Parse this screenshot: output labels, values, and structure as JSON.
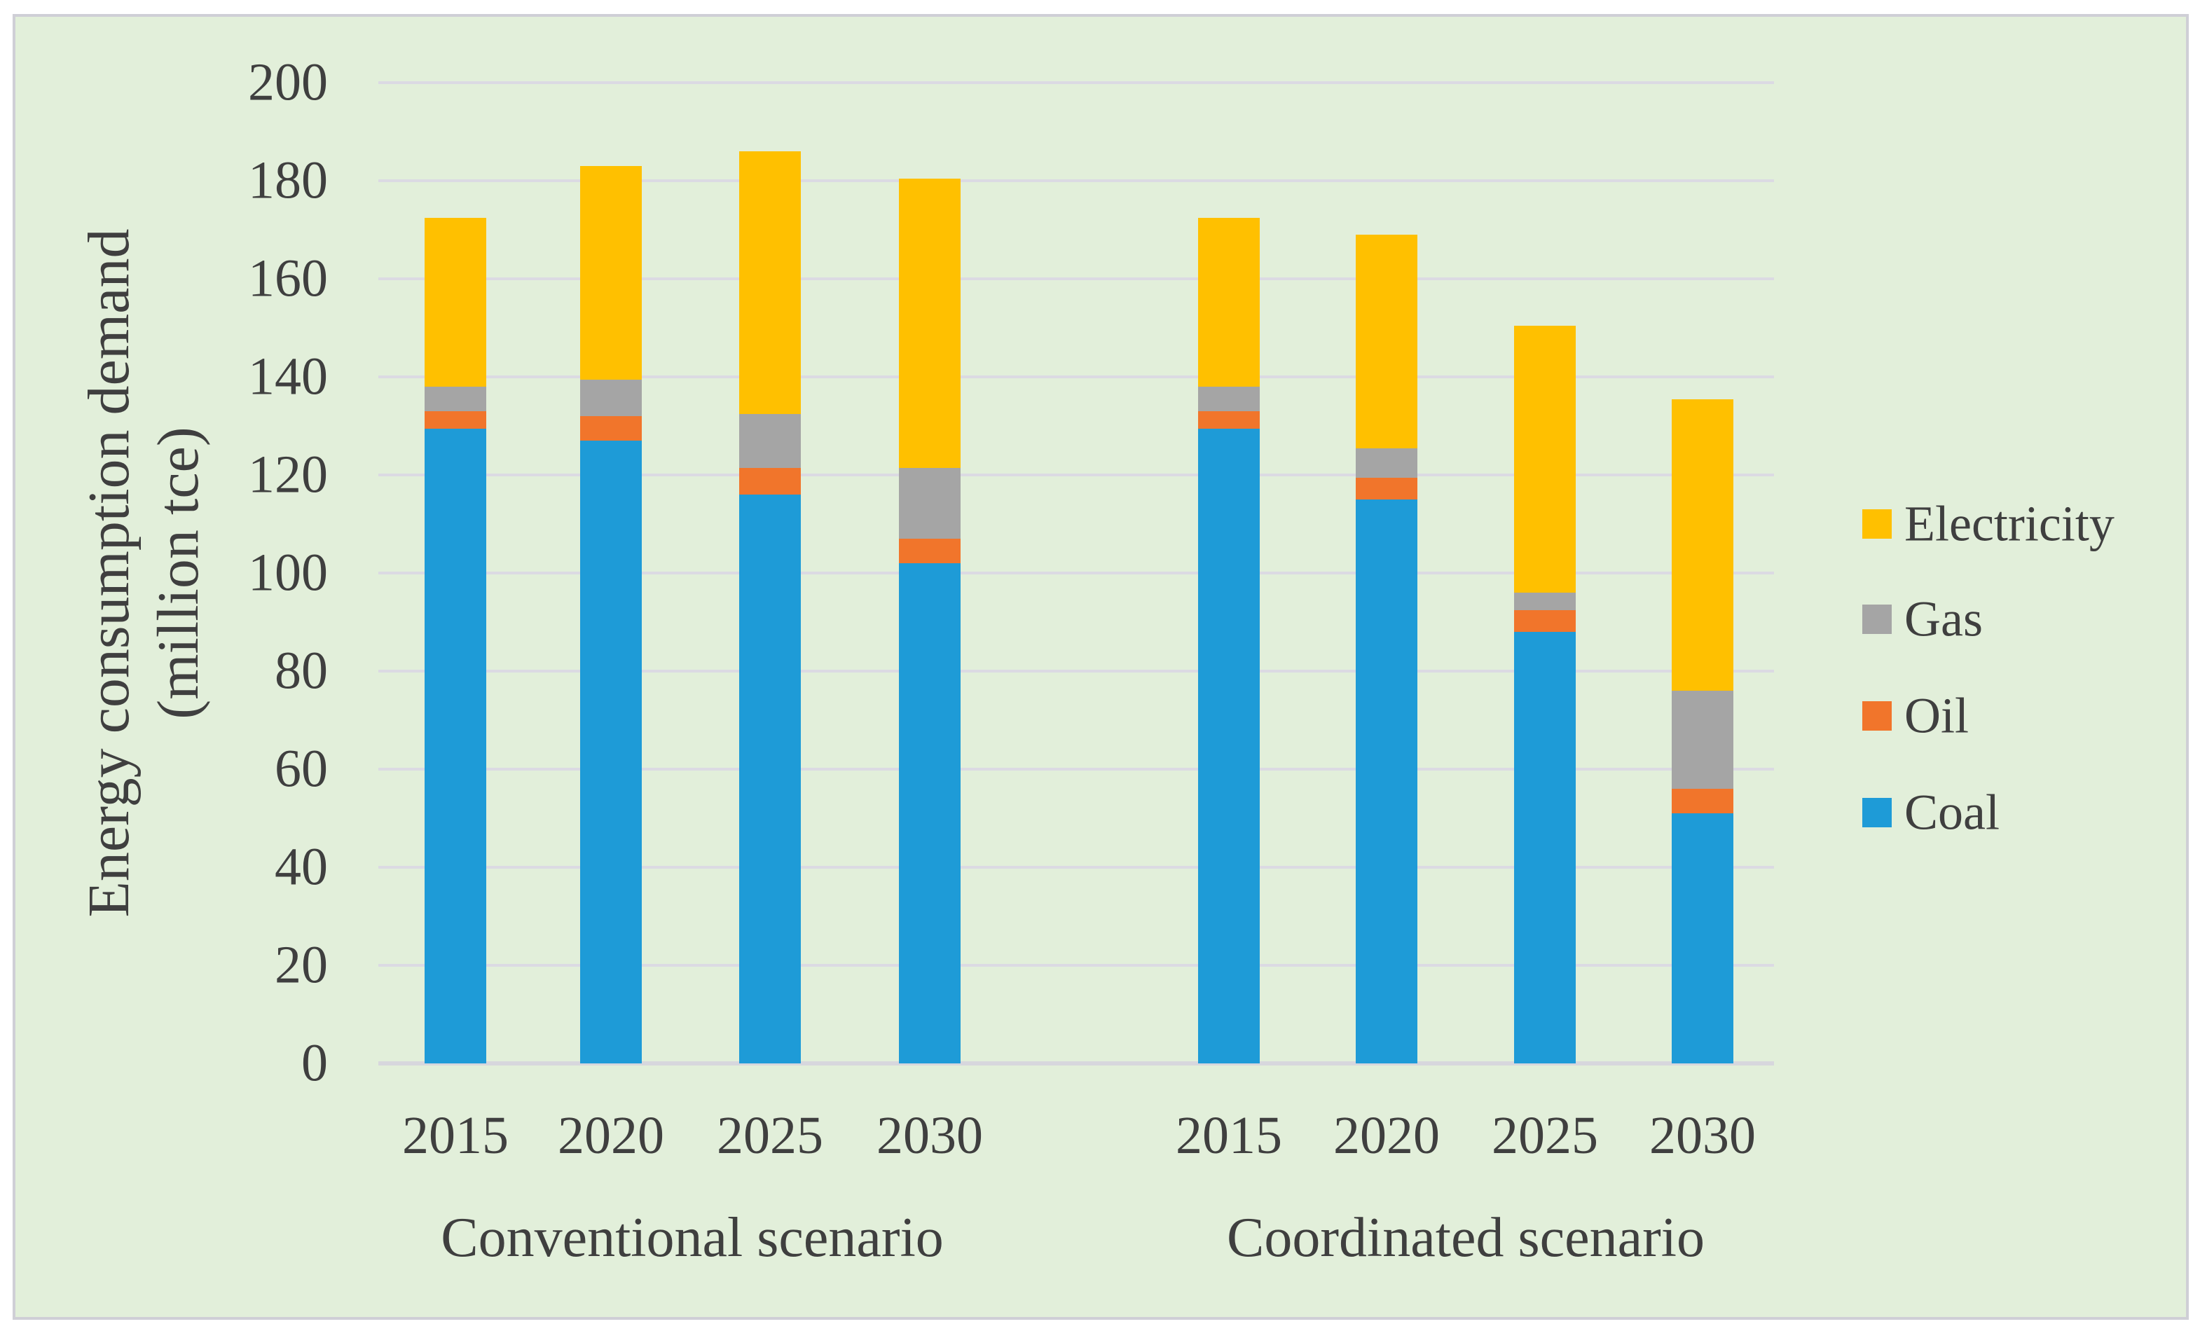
{
  "figure": {
    "type": "stacked-bar-chart",
    "background_color": "#FFFFFF",
    "panel_background_color": "#E2EFDA",
    "panel_border_color": "#CFCFD6",
    "gridline_color": "#DBDAE3",
    "axis_line_color": "#D7D7DD",
    "text_color": "#3F3F3F"
  },
  "chart_data": {
    "type": "bar",
    "stacked": true,
    "title": "",
    "ylabel_line1": "Energy consumption demand",
    "ylabel_line2": "(million tce)",
    "ylim": [
      0,
      200
    ],
    "ytick_step": 20,
    "yticks": [
      0,
      20,
      40,
      60,
      80,
      100,
      120,
      140,
      160,
      180,
      200
    ],
    "grid": true,
    "legend_position": "right",
    "legend_order_top_to_bottom": [
      "Electricity",
      "Gas",
      "Oil",
      "Coal"
    ],
    "groups": [
      {
        "label": "Conventional scenario",
        "categories": [
          "2015",
          "2020",
          "2025",
          "2030"
        ]
      },
      {
        "label": "Coordinated scenario",
        "categories": [
          "2015",
          "2020",
          "2025",
          "2030"
        ]
      }
    ],
    "series": [
      {
        "name": "Coal",
        "color": "#1E9BD7",
        "values": [
          [
            129.5,
            127.0,
            116.0,
            102.0
          ],
          [
            129.5,
            115.0,
            88.0,
            51.0
          ]
        ]
      },
      {
        "name": "Oil",
        "color": "#F1752B",
        "values": [
          [
            3.5,
            5.0,
            5.5,
            5.0
          ],
          [
            3.5,
            4.5,
            4.5,
            5.0
          ]
        ]
      },
      {
        "name": "Gas",
        "color": "#A5A5A5",
        "values": [
          [
            5.0,
            7.5,
            11.0,
            14.5
          ],
          [
            5.0,
            6.0,
            3.5,
            20.0
          ]
        ]
      },
      {
        "name": "Electricity",
        "color": "#FFC000",
        "values": [
          [
            34.5,
            43.5,
            53.5,
            59.0
          ],
          [
            34.5,
            43.5,
            54.5,
            59.5
          ]
        ]
      }
    ],
    "totals": [
      [
        172.5,
        183.0,
        186.0,
        180.5
      ],
      [
        172.5,
        169.0,
        150.5,
        135.5
      ]
    ]
  }
}
